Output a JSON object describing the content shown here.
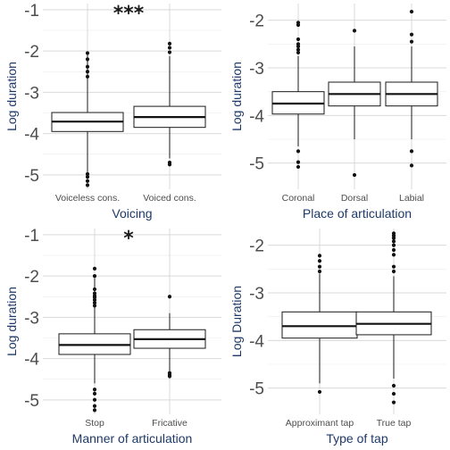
{
  "chart_data": [
    {
      "type": "boxplot",
      "xlabel": "Voicing",
      "ylabel": "Log duration",
      "ylim": [
        -5.35,
        -0.85
      ],
      "yticks": [
        -1,
        -2,
        -3,
        -4,
        -5
      ],
      "annotation": "***",
      "categories": [
        "Voiceless cons.",
        "Voiced cons."
      ],
      "boxes": [
        {
          "category": "Voiceless cons.",
          "whisker_low": -4.93,
          "q1": -3.95,
          "median": -3.71,
          "q3": -3.49,
          "whisker_high": -2.1,
          "outliers": [
            -2.05,
            -2.2,
            -2.38,
            -2.5,
            -2.62,
            -4.98,
            -5.05,
            -5.15,
            -5.25
          ]
        },
        {
          "category": "Voiced cons.",
          "whisker_low": -4.6,
          "q1": -3.85,
          "median": -3.6,
          "q3": -3.34,
          "whisker_high": -2.12,
          "outliers": [
            -1.82,
            -1.92,
            -2.03,
            -4.7,
            -4.75
          ]
        }
      ]
    },
    {
      "type": "boxplot",
      "xlabel": "Place of articulation",
      "ylabel": "Log duration",
      "ylim": [
        -5.55,
        -1.65
      ],
      "yticks": [
        -2,
        -3,
        -4,
        -5
      ],
      "annotation": "",
      "categories": [
        "Coronal",
        "Dorsal",
        "Labial"
      ],
      "boxes": [
        {
          "category": "Coronal",
          "whisker_low": -4.65,
          "q1": -3.97,
          "median": -3.75,
          "q3": -3.5,
          "whisker_high": -2.75,
          "outliers": [
            -2.05,
            -2.1,
            -2.4,
            -2.5,
            -2.55,
            -2.62,
            -2.68,
            -4.75,
            -4.98,
            -5.08
          ]
        },
        {
          "category": "Dorsal",
          "whisker_low": -4.5,
          "q1": -3.8,
          "median": -3.55,
          "q3": -3.3,
          "whisker_high": -2.55,
          "outliers": [
            -2.22,
            -5.25
          ]
        },
        {
          "category": "Labial",
          "whisker_low": -4.5,
          "q1": -3.8,
          "median": -3.55,
          "q3": -3.3,
          "whisker_high": -2.55,
          "outliers": [
            -1.82,
            -2.3,
            -2.45,
            -4.75,
            -5.05
          ]
        }
      ]
    },
    {
      "type": "boxplot",
      "xlabel": "Manner of articulation",
      "ylabel": "Log duration",
      "ylim": [
        -5.35,
        -0.85
      ],
      "yticks": [
        -1,
        -2,
        -3,
        -4,
        -5
      ],
      "annotation": "*",
      "categories": [
        "Stop",
        "Fricative"
      ],
      "boxes": [
        {
          "category": "Stop",
          "whisker_low": -4.6,
          "q1": -3.9,
          "median": -3.67,
          "q3": -3.4,
          "whisker_high": -2.05,
          "outliers": [
            -1.82,
            -2.0,
            -2.32,
            -2.42,
            -2.48,
            -2.52,
            -2.58,
            -2.65,
            -2.72,
            -4.75,
            -4.85,
            -5.0,
            -5.15,
            -5.25
          ]
        },
        {
          "category": "Fricative",
          "whisker_low": -4.3,
          "q1": -3.75,
          "median": -3.53,
          "q3": -3.3,
          "whisker_high": -2.9,
          "outliers": [
            -2.5,
            -4.35,
            -4.4,
            -4.43
          ]
        }
      ]
    },
    {
      "type": "boxplot",
      "xlabel": "Type of tap",
      "ylabel": "Log Duration",
      "ylim": [
        -5.55,
        -1.65
      ],
      "yticks": [
        -2,
        -3,
        -4,
        -5
      ],
      "annotation": "",
      "categories": [
        "Approximant tap",
        "True tap"
      ],
      "boxes": [
        {
          "category": "Approximant tap",
          "whisker_low": -4.9,
          "q1": -3.95,
          "median": -3.7,
          "q3": -3.4,
          "whisker_high": -2.6,
          "outliers": [
            -2.22,
            -2.33,
            -2.45,
            -2.55,
            -5.08
          ]
        },
        {
          "category": "True tap",
          "whisker_low": -4.8,
          "q1": -3.88,
          "median": -3.65,
          "q3": -3.4,
          "whisker_high": -2.65,
          "outliers": [
            -1.75,
            -1.8,
            -1.85,
            -1.92,
            -2.0,
            -2.1,
            -2.2,
            -2.45,
            -2.55,
            -4.95,
            -5.12,
            -5.3
          ]
        }
      ]
    }
  ]
}
